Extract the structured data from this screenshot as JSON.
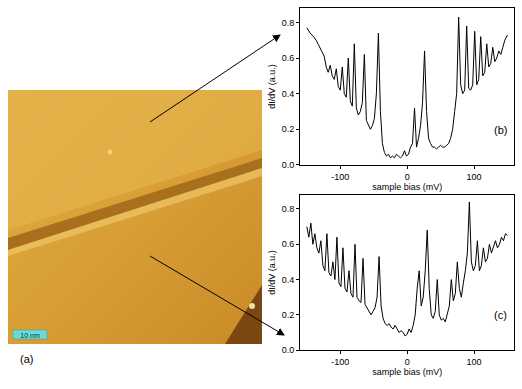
{
  "image": {
    "label": "(a)",
    "scale_bar": "10 nm"
  },
  "chart_data": [
    {
      "type": "line",
      "panel_label": "(b)",
      "xlabel": "sample bias (mV)",
      "ylabel": "dI/dV (a.u.)",
      "color": "#000000",
      "xlim": [
        -160,
        160
      ],
      "ylim": [
        0,
        0.88
      ],
      "xticks": [
        -100,
        0,
        100
      ],
      "yticks": [
        {
          "value": 0,
          "label": "0.0"
        },
        0.2,
        0.4,
        0.6,
        0.8
      ],
      "x": [
        -150,
        -145,
        -140,
        -136,
        -132,
        -128,
        -124,
        -121,
        -118,
        -115,
        -112,
        -109,
        -106,
        -103,
        -100,
        -97,
        -94,
        -91,
        -88,
        -85,
        -82,
        -79,
        -76,
        -73,
        -70,
        -67,
        -64,
        -61,
        -58,
        -55,
        -52,
        -49,
        -46,
        -43,
        -40,
        -37,
        -34,
        -31,
        -28,
        -25,
        -22,
        -19,
        -16,
        -13,
        -10,
        -7,
        -4,
        -1,
        2,
        5,
        8,
        11,
        14,
        17,
        20,
        23,
        26,
        29,
        32,
        35,
        38,
        41,
        44,
        47,
        50,
        53,
        56,
        59,
        62,
        65,
        68,
        71,
        74,
        77,
        80,
        83,
        86,
        89,
        92,
        95,
        98,
        101,
        104,
        107,
        110,
        113,
        116,
        119,
        122,
        125,
        128,
        131,
        134,
        137,
        140,
        143,
        146,
        150
      ],
      "values": [
        0.77,
        0.74,
        0.72,
        0.7,
        0.67,
        0.64,
        0.61,
        0.55,
        0.52,
        0.56,
        0.5,
        0.48,
        0.54,
        0.44,
        0.42,
        0.55,
        0.4,
        0.38,
        0.6,
        0.36,
        0.33,
        0.68,
        0.32,
        0.28,
        0.3,
        0.35,
        0.62,
        0.25,
        0.22,
        0.2,
        0.22,
        0.26,
        0.4,
        0.74,
        0.3,
        0.12,
        0.07,
        0.05,
        0.06,
        0.04,
        0.05,
        0.04,
        0.06,
        0.05,
        0.04,
        0.05,
        0.08,
        0.05,
        0.06,
        0.1,
        0.12,
        0.32,
        0.1,
        0.15,
        0.22,
        0.35,
        0.64,
        0.3,
        0.15,
        0.12,
        0.1,
        0.1,
        0.09,
        0.1,
        0.11,
        0.1,
        0.1,
        0.11,
        0.12,
        0.15,
        0.2,
        0.3,
        0.4,
        0.83,
        0.45,
        0.4,
        0.42,
        0.78,
        0.43,
        0.42,
        0.45,
        0.75,
        0.45,
        0.48,
        0.72,
        0.5,
        0.52,
        0.68,
        0.55,
        0.57,
        0.66,
        0.58,
        0.6,
        0.64,
        0.62,
        0.66,
        0.7,
        0.73
      ]
    },
    {
      "type": "line",
      "panel_label": "(c)",
      "xlabel": "sample bias (mV)",
      "ylabel": "dI/dV (a.u.)",
      "color": "#000000",
      "xlim": [
        -160,
        160
      ],
      "ylim": [
        0,
        0.88
      ],
      "xticks": [
        -100,
        0,
        100
      ],
      "yticks": [
        {
          "value": 0,
          "label": "0.0"
        },
        0.2,
        0.4,
        0.6,
        0.8
      ],
      "x": [
        -150,
        -147,
        -144,
        -141,
        -138,
        -135,
        -132,
        -129,
        -126,
        -123,
        -120,
        -117,
        -114,
        -111,
        -108,
        -105,
        -102,
        -99,
        -96,
        -93,
        -90,
        -87,
        -84,
        -81,
        -78,
        -75,
        -72,
        -69,
        -66,
        -63,
        -60,
        -57,
        -54,
        -51,
        -48,
        -45,
        -42,
        -39,
        -36,
        -33,
        -30,
        -27,
        -24,
        -21,
        -18,
        -15,
        -12,
        -9,
        -6,
        -3,
        0,
        3,
        6,
        9,
        12,
        15,
        18,
        21,
        24,
        27,
        30,
        33,
        36,
        39,
        42,
        45,
        48,
        51,
        54,
        57,
        60,
        63,
        66,
        69,
        72,
        75,
        78,
        81,
        84,
        87,
        90,
        93,
        96,
        99,
        102,
        105,
        108,
        111,
        114,
        117,
        120,
        123,
        126,
        129,
        132,
        135,
        138,
        141,
        144,
        147,
        150
      ],
      "values": [
        0.7,
        0.64,
        0.72,
        0.6,
        0.66,
        0.58,
        0.55,
        0.62,
        0.48,
        0.45,
        0.66,
        0.44,
        0.42,
        0.5,
        0.4,
        0.64,
        0.38,
        0.36,
        0.58,
        0.35,
        0.33,
        0.45,
        0.32,
        0.3,
        0.6,
        0.3,
        0.28,
        0.27,
        0.52,
        0.26,
        0.24,
        0.22,
        0.2,
        0.22,
        0.24,
        0.3,
        0.53,
        0.25,
        0.18,
        0.15,
        0.14,
        0.15,
        0.13,
        0.12,
        0.14,
        0.12,
        0.1,
        0.11,
        0.1,
        0.08,
        0.09,
        0.12,
        0.1,
        0.14,
        0.2,
        0.35,
        0.45,
        0.25,
        0.3,
        0.45,
        0.68,
        0.35,
        0.2,
        0.18,
        0.22,
        0.4,
        0.2,
        0.17,
        0.18,
        0.16,
        0.2,
        0.25,
        0.4,
        0.28,
        0.32,
        0.5,
        0.35,
        0.3,
        0.38,
        0.45,
        0.55,
        0.84,
        0.5,
        0.45,
        0.48,
        0.62,
        0.45,
        0.48,
        0.58,
        0.5,
        0.52,
        0.6,
        0.55,
        0.58,
        0.62,
        0.58,
        0.6,
        0.64,
        0.62,
        0.66,
        0.65
      ]
    }
  ]
}
